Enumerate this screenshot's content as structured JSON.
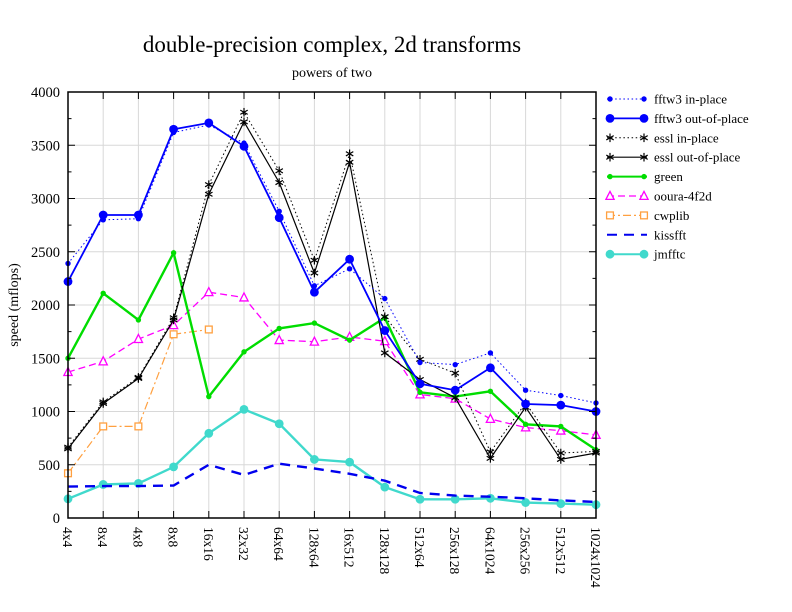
{
  "chart_data": {
    "type": "line",
    "title": "double-precision complex, 2d transforms",
    "subtitle": "powers of two",
    "ylabel": "speed (mflops)",
    "xlabel": "",
    "ylim": [
      0,
      4000
    ],
    "ytick_interval": 500,
    "yticks": [
      0,
      500,
      1000,
      1500,
      2000,
      2500,
      3000,
      3500,
      4000
    ],
    "grid": true,
    "legend_position": "right",
    "categories": [
      "4x4",
      "8x4",
      "4x8",
      "8x8",
      "16x16",
      "32x32",
      "64x64",
      "128x64",
      "16x512",
      "128x128",
      "512x64",
      "256x128",
      "64x1024",
      "256x256",
      "512x512",
      "1024x1024"
    ],
    "series": [
      {
        "name": "fftw3 in-place",
        "color": "#0000ff",
        "line": "dotted",
        "width": 1.0,
        "marker": "dot-small",
        "values": [
          2390,
          2800,
          2810,
          3620,
          3690,
          3520,
          2880,
          2180,
          2340,
          2060,
          1460,
          1440,
          1550,
          1200,
          1150,
          1080
        ]
      },
      {
        "name": "fftw3 out-of-place",
        "color": "#0000ff",
        "line": "solid",
        "width": 1.8,
        "marker": "dot-large",
        "values": [
          2220,
          2845,
          2845,
          3650,
          3710,
          3490,
          2820,
          2120,
          2430,
          1760,
          1260,
          1200,
          1410,
          1070,
          1060,
          1000
        ]
      },
      {
        "name": "essl in-place",
        "color": "#000000",
        "line": "dotted",
        "width": 1.0,
        "marker": "asterisk",
        "values": [
          665,
          1090,
          1320,
          1880,
          3130,
          3810,
          3260,
          2420,
          3420,
          1890,
          1490,
          1360,
          620,
          1080,
          610,
          625
        ]
      },
      {
        "name": "essl out-of-place",
        "color": "#000000",
        "line": "solid",
        "width": 1.2,
        "marker": "asterisk",
        "values": [
          650,
          1075,
          1310,
          1860,
          3040,
          3720,
          3150,
          2300,
          3340,
          1550,
          1300,
          1130,
          560,
          1040,
          550,
          610
        ]
      },
      {
        "name": "green",
        "color": "#00dd00",
        "line": "solid",
        "width": 2.4,
        "marker": "dot-small",
        "values": [
          1500,
          2110,
          1860,
          2490,
          1140,
          1560,
          1780,
          1830,
          1670,
          1880,
          1180,
          1140,
          1190,
          880,
          860,
          640
        ]
      },
      {
        "name": "ooura-4f2d",
        "color": "#ff00ff",
        "line": "dashed",
        "width": 1.3,
        "marker": "triangle-open",
        "values": [
          1370,
          1470,
          1680,
          1810,
          2120,
          2070,
          1670,
          1655,
          1700,
          1660,
          1160,
          1120,
          930,
          850,
          820,
          780
        ]
      },
      {
        "name": "cwplib",
        "color": "#ffa040",
        "line": "dashdot",
        "width": 1.2,
        "marker": "square-open",
        "values": [
          420,
          860,
          860,
          1725,
          1770,
          null,
          null,
          null,
          null,
          null,
          null,
          null,
          null,
          null,
          null,
          null
        ]
      },
      {
        "name": "kissfft",
        "color": "#0000ee",
        "line": "longdash",
        "width": 2.4,
        "marker": "none",
        "values": [
          295,
          300,
          300,
          305,
          500,
          405,
          510,
          465,
          415,
          350,
          235,
          210,
          200,
          185,
          165,
          150
        ]
      },
      {
        "name": "jmfftc",
        "color": "#40d9cc",
        "line": "solid",
        "width": 2.4,
        "marker": "dot-large",
        "values": [
          180,
          315,
          325,
          480,
          795,
          1020,
          885,
          550,
          525,
          290,
          176,
          176,
          185,
          145,
          135,
          125
        ]
      }
    ],
    "grid_color": "#d8d8d8",
    "frame_color": "#000000"
  }
}
